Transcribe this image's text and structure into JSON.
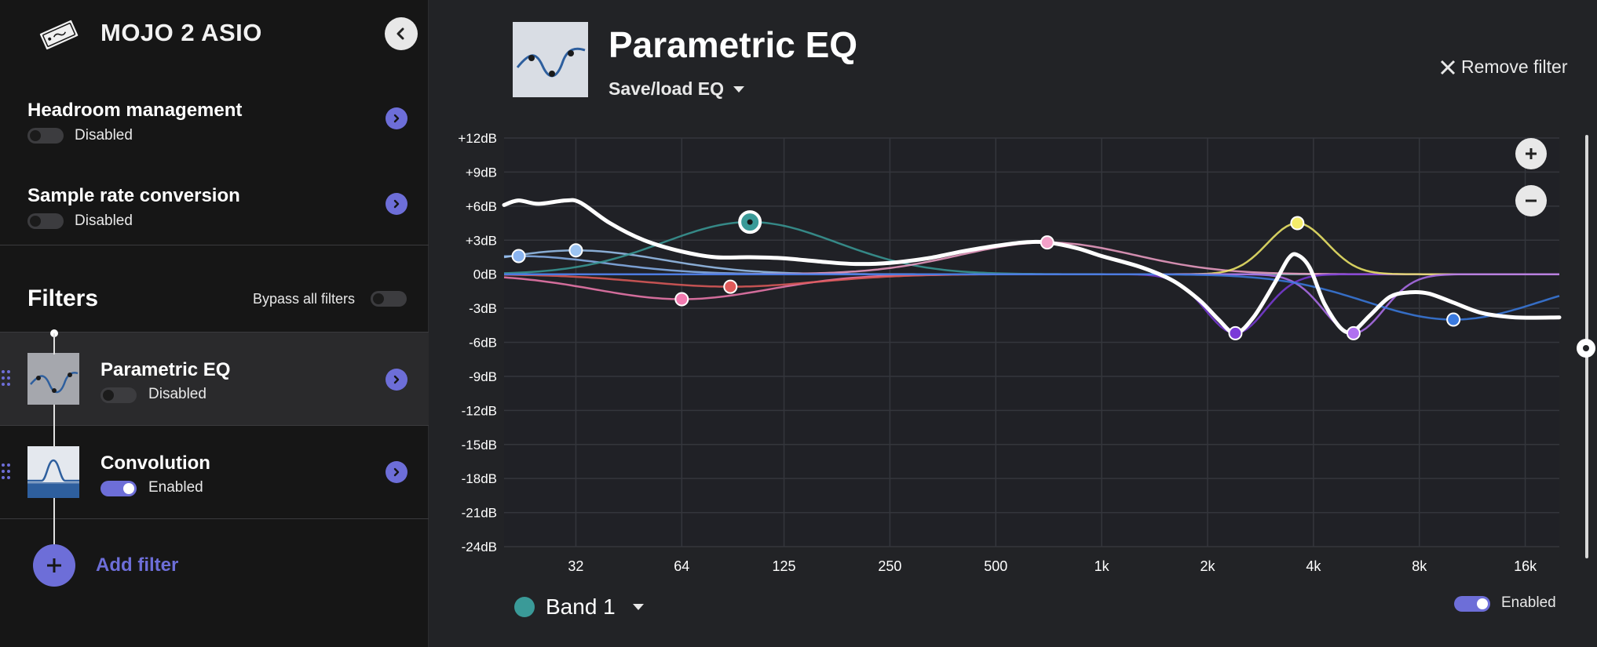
{
  "device": {
    "name": "MOJO 2 ASIO",
    "icon": "device-icon"
  },
  "settings": [
    {
      "title": "Headroom management",
      "state": "Disabled",
      "enabled": false
    },
    {
      "title": "Sample rate conversion",
      "state": "Disabled",
      "enabled": false
    }
  ],
  "filters_section": {
    "heading": "Filters",
    "bypass_label": "Bypass all filters",
    "items": [
      {
        "name": "Parametric EQ",
        "state": "Disabled",
        "enabled": false
      },
      {
        "name": "Convolution",
        "state": "Enabled",
        "enabled": true
      }
    ],
    "add_label": "Add filter"
  },
  "editor": {
    "title": "Parametric EQ",
    "saveload_label": "Save/load EQ",
    "remove_label": "Remove filter",
    "band_label": "Band 1",
    "band_color": "#3a9a98",
    "enabled_label": "Enabled",
    "accent_color": "#6d6ed8"
  },
  "chart_data": {
    "type": "line",
    "y_axis": {
      "ticks": [
        "+12dB",
        "+9dB",
        "+6dB",
        "+3dB",
        "0dB",
        "-3dB",
        "-6dB",
        "-9dB",
        "-12dB",
        "-15dB",
        "-18dB",
        "-21dB",
        "-24dB"
      ],
      "range_db": [
        -24,
        12
      ]
    },
    "x_axis": {
      "scale": "log",
      "ticks": [
        "32",
        "64",
        "125",
        "250",
        "500",
        "1k",
        "2k",
        "4k",
        "8k",
        "16k"
      ],
      "tick_values": [
        32,
        64,
        125,
        250,
        500,
        1000,
        2000,
        4000,
        8000,
        16000
      ],
      "range_hz": [
        20,
        20000
      ]
    },
    "bands": [
      {
        "freq": 22,
        "gain": 1.6,
        "color": "#8ab4f0"
      },
      {
        "freq": 32,
        "gain": 2.1,
        "color": "#9cc4f2"
      },
      {
        "freq": 64,
        "gain": -2.2,
        "color": "#f27ab0"
      },
      {
        "freq": 88,
        "gain": -1.1,
        "color": "#e05a5a"
      },
      {
        "freq": 100,
        "gain": 4.6,
        "color": "#3a9a98"
      },
      {
        "freq": 700,
        "gain": 2.8,
        "color": "#f2a0c8"
      },
      {
        "freq": 2400,
        "gain": -5.2,
        "color": "#7a3ad8"
      },
      {
        "freq": 3600,
        "gain": 4.5,
        "color": "#f4ec6a"
      },
      {
        "freq": 5200,
        "gain": -5.2,
        "color": "#b070f0"
      },
      {
        "freq": 10000,
        "gain": -4.0,
        "color": "#3a7ae0"
      }
    ],
    "total_response": [
      [
        20,
        6.1
      ],
      [
        22,
        6.5
      ],
      [
        25,
        6.2
      ],
      [
        30,
        6.5
      ],
      [
        33,
        6.3
      ],
      [
        40,
        4.5
      ],
      [
        50,
        3.0
      ],
      [
        64,
        2.0
      ],
      [
        80,
        1.5
      ],
      [
        100,
        1.5
      ],
      [
        125,
        1.4
      ],
      [
        160,
        1.1
      ],
      [
        200,
        0.9
      ],
      [
        250,
        1.0
      ],
      [
        320,
        1.4
      ],
      [
        400,
        2.0
      ],
      [
        500,
        2.5
      ],
      [
        600,
        2.8
      ],
      [
        700,
        2.8
      ],
      [
        850,
        2.3
      ],
      [
        1000,
        1.6
      ],
      [
        1300,
        0.6
      ],
      [
        1600,
        -0.6
      ],
      [
        1900,
        -2.3
      ],
      [
        2150,
        -4.0
      ],
      [
        2400,
        -5.2
      ],
      [
        2700,
        -3.8
      ],
      [
        3100,
        -0.8
      ],
      [
        3400,
        1.4
      ],
      [
        3600,
        1.7
      ],
      [
        3900,
        0.6
      ],
      [
        4300,
        -2.6
      ],
      [
        4800,
        -4.8
      ],
      [
        5200,
        -5.0
      ],
      [
        5800,
        -3.6
      ],
      [
        6600,
        -2.0
      ],
      [
        7500,
        -1.6
      ],
      [
        8500,
        -1.7
      ],
      [
        10000,
        -2.5
      ],
      [
        12000,
        -3.4
      ],
      [
        15000,
        -3.8
      ],
      [
        20000,
        -3.8
      ]
    ]
  }
}
